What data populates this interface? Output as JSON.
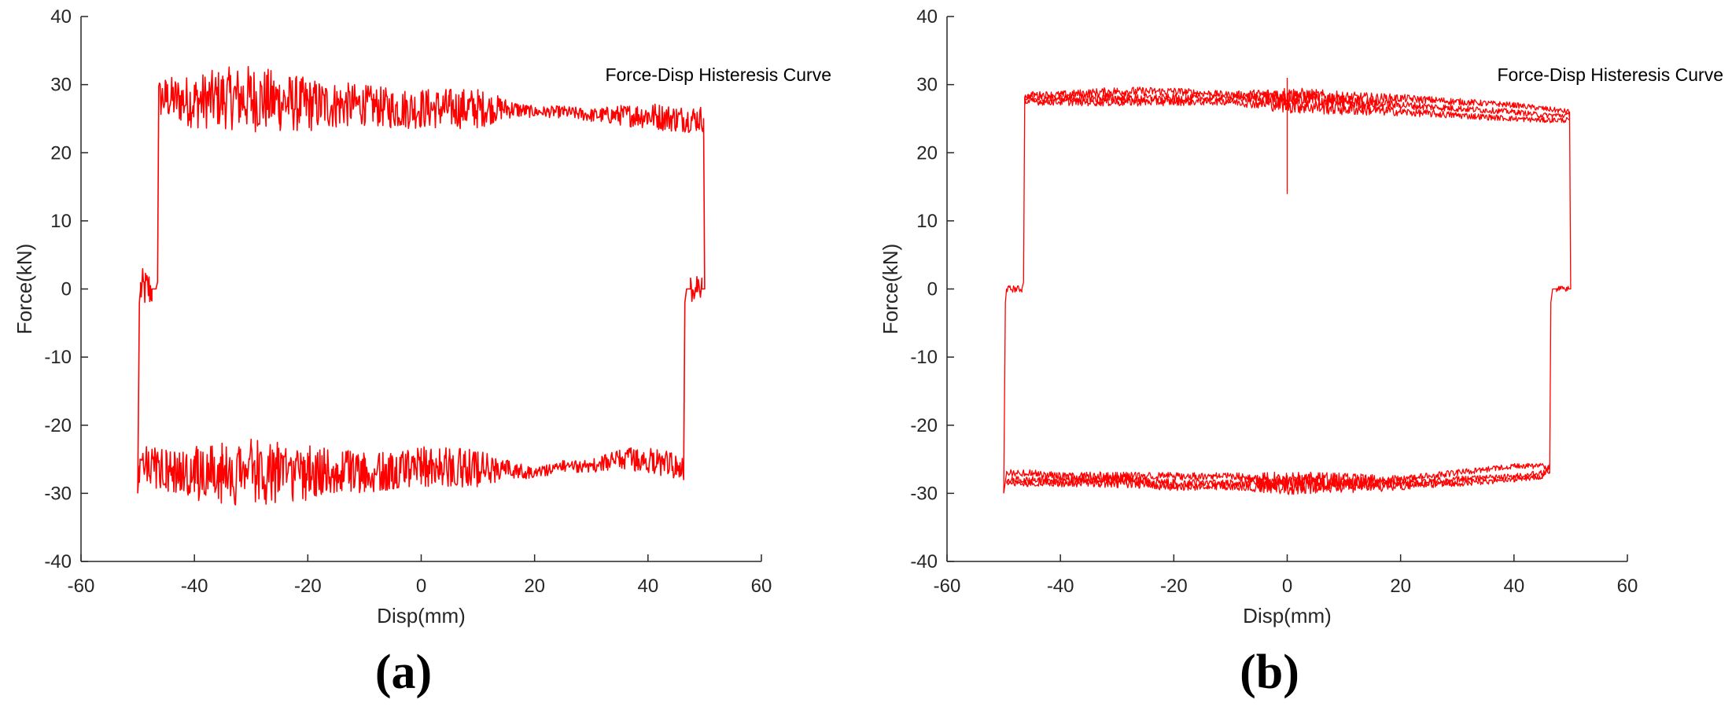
{
  "panels": [
    {
      "caption": "(a)",
      "chart_data": {
        "type": "line",
        "legend": "Force-Disp Histeresis Curve",
        "legend_position": "top-right",
        "xlabel": "Disp(mm)",
        "ylabel": "Force(kN)",
        "xlim": [
          -60,
          60
        ],
        "ylim": [
          -40,
          40
        ],
        "xticks": [
          -60,
          -40,
          -20,
          0,
          20,
          40,
          60
        ],
        "yticks": [
          -40,
          -30,
          -20,
          -10,
          0,
          10,
          20,
          30,
          40
        ],
        "grid": false,
        "color": "#ff0000",
        "series": [
          {
            "x": [
              -50,
              -49.7,
              -49.5,
              -47.5,
              -46.8,
              -46.5,
              -46.3,
              -45,
              -40,
              -35,
              -30,
              -25,
              -20,
              -15,
              -10,
              -5,
              0,
              5,
              10,
              15,
              20,
              25,
              30,
              35,
              40,
              45,
              49.8,
              50,
              49.8,
              49.5,
              47.5,
              46.8,
              46.5,
              46.3,
              45,
              40,
              35,
              30,
              25,
              20,
              15,
              10,
              5,
              0,
              -5,
              -10,
              -15,
              -20,
              -25,
              -30,
              -35,
              -40,
              -45,
              -49.7,
              -50
            ],
            "y": [
              -30,
              -2,
              0,
              0,
              0,
              1,
              28,
              28,
              27.5,
              28,
              28,
              27.5,
              27,
              27,
              27,
              26.5,
              26.5,
              26.5,
              26.5,
              26.5,
              26,
              26,
              25.5,
              25.5,
              25.5,
              25,
              25,
              0,
              0,
              0,
              0,
              0,
              -2,
              -27,
              -26,
              -25,
              -25,
              -26,
              -26,
              -27,
              -26.5,
              -26.5,
              -26,
              -26,
              -26.5,
              -27,
              -27,
              -27,
              -27,
              -27,
              -27,
              -27,
              -26.5,
              -26,
              -30
            ]
          }
        ],
        "noise_amplitude": [
          [
            -46,
            3
          ],
          [
            -40,
            4
          ],
          [
            -30,
            5
          ],
          [
            -20,
            4
          ],
          [
            -10,
            3
          ],
          [
            0,
            3
          ],
          [
            10,
            3
          ],
          [
            15,
            1.5
          ],
          [
            20,
            0.8
          ],
          [
            30,
            1
          ],
          [
            40,
            2
          ],
          [
            50,
            2
          ]
        ]
      }
    },
    {
      "caption": "(b)",
      "chart_data": {
        "type": "line",
        "legend": "Force-Disp Histeresis Curve",
        "legend_position": "top-right",
        "xlabel": "Disp(mm)",
        "ylabel": "Force(kN)",
        "xlim": [
          -60,
          60
        ],
        "ylim": [
          -40,
          40
        ],
        "xticks": [
          -60,
          -40,
          -20,
          0,
          20,
          40,
          60
        ],
        "yticks": [
          -40,
          -30,
          -20,
          -10,
          0,
          10,
          20,
          30,
          40
        ],
        "grid": false,
        "color": "#ff0000",
        "series": [
          {
            "x": [
              -50,
              -49.7,
              -49.5,
              -46.8,
              -46.5,
              -46.3,
              -45,
              -40,
              -30,
              -20,
              -10,
              0,
              10,
              20,
              30,
              40,
              45,
              49.8,
              50,
              49.8,
              47.5,
              46.8,
              46.5,
              46.3,
              45,
              40,
              30,
              20,
              10,
              0,
              -10,
              -20,
              -30,
              -40,
              -45,
              -49.5,
              -50
            ],
            "y": [
              -30,
              -2,
              0,
              0,
              1,
              28,
              28.5,
              28.5,
              29,
              29,
              28.5,
              28.5,
              28,
              28,
              27.5,
              27,
              26.5,
              26,
              0,
              0,
              0,
              0,
              -2,
              -27,
              -26,
              -26,
              -27,
              -28,
              -28,
              -28,
              -27.5,
              -27.5,
              -27.5,
              -27.5,
              -27,
              -27,
              -30
            ]
          },
          {
            "x": [
              -46.3,
              -45,
              -40,
              -30,
              -20,
              -10,
              0,
              10,
              20,
              30,
              40,
              45,
              49.8
            ],
            "y": [
              28,
              28,
              28,
              28,
              28,
              28,
              28,
              27.5,
              27,
              26.5,
              26,
              25.5,
              25.5
            ]
          },
          {
            "x": [
              -46.3,
              -45,
              -40,
              -30,
              -20,
              -10,
              0,
              10,
              20,
              30,
              40,
              45,
              49.8
            ],
            "y": [
              27.5,
              27.5,
              27.5,
              27.5,
              27.5,
              27.5,
              27,
              26.5,
              26,
              25.5,
              25,
              24.8,
              24.8
            ]
          },
          {
            "x": [
              46.3,
              45,
              40,
              30,
              20,
              10,
              0,
              -10,
              -20,
              -30,
              -40,
              -45,
              -49.5
            ],
            "y": [
              -26.5,
              -27,
              -27.5,
              -28,
              -28.5,
              -28.5,
              -28.5,
              -28.5,
              -28.5,
              -28,
              -28,
              -28,
              -28
            ]
          },
          {
            "x": [
              46.3,
              45,
              40,
              30,
              20,
              10,
              0,
              -10,
              -20,
              -30,
              -40,
              -45,
              -49.5
            ],
            "y": [
              -26,
              -27.5,
              -28,
              -28.5,
              -29,
              -29,
              -29,
              -29,
              -29,
              -28.5,
              -28.5,
              -28.5,
              -28.5
            ]
          },
          {
            "x": [
              0,
              0,
              0
            ],
            "y": [
              28,
              14,
              31
            ]
          }
        ],
        "noise_amplitude": [
          [
            -46,
            0.5
          ],
          [
            -30,
            0.7
          ],
          [
            -10,
            0.5
          ],
          [
            0,
            1.2
          ],
          [
            10,
            1
          ],
          [
            20,
            0.6
          ],
          [
            40,
            0.4
          ],
          [
            50,
            0.4
          ]
        ]
      }
    }
  ]
}
